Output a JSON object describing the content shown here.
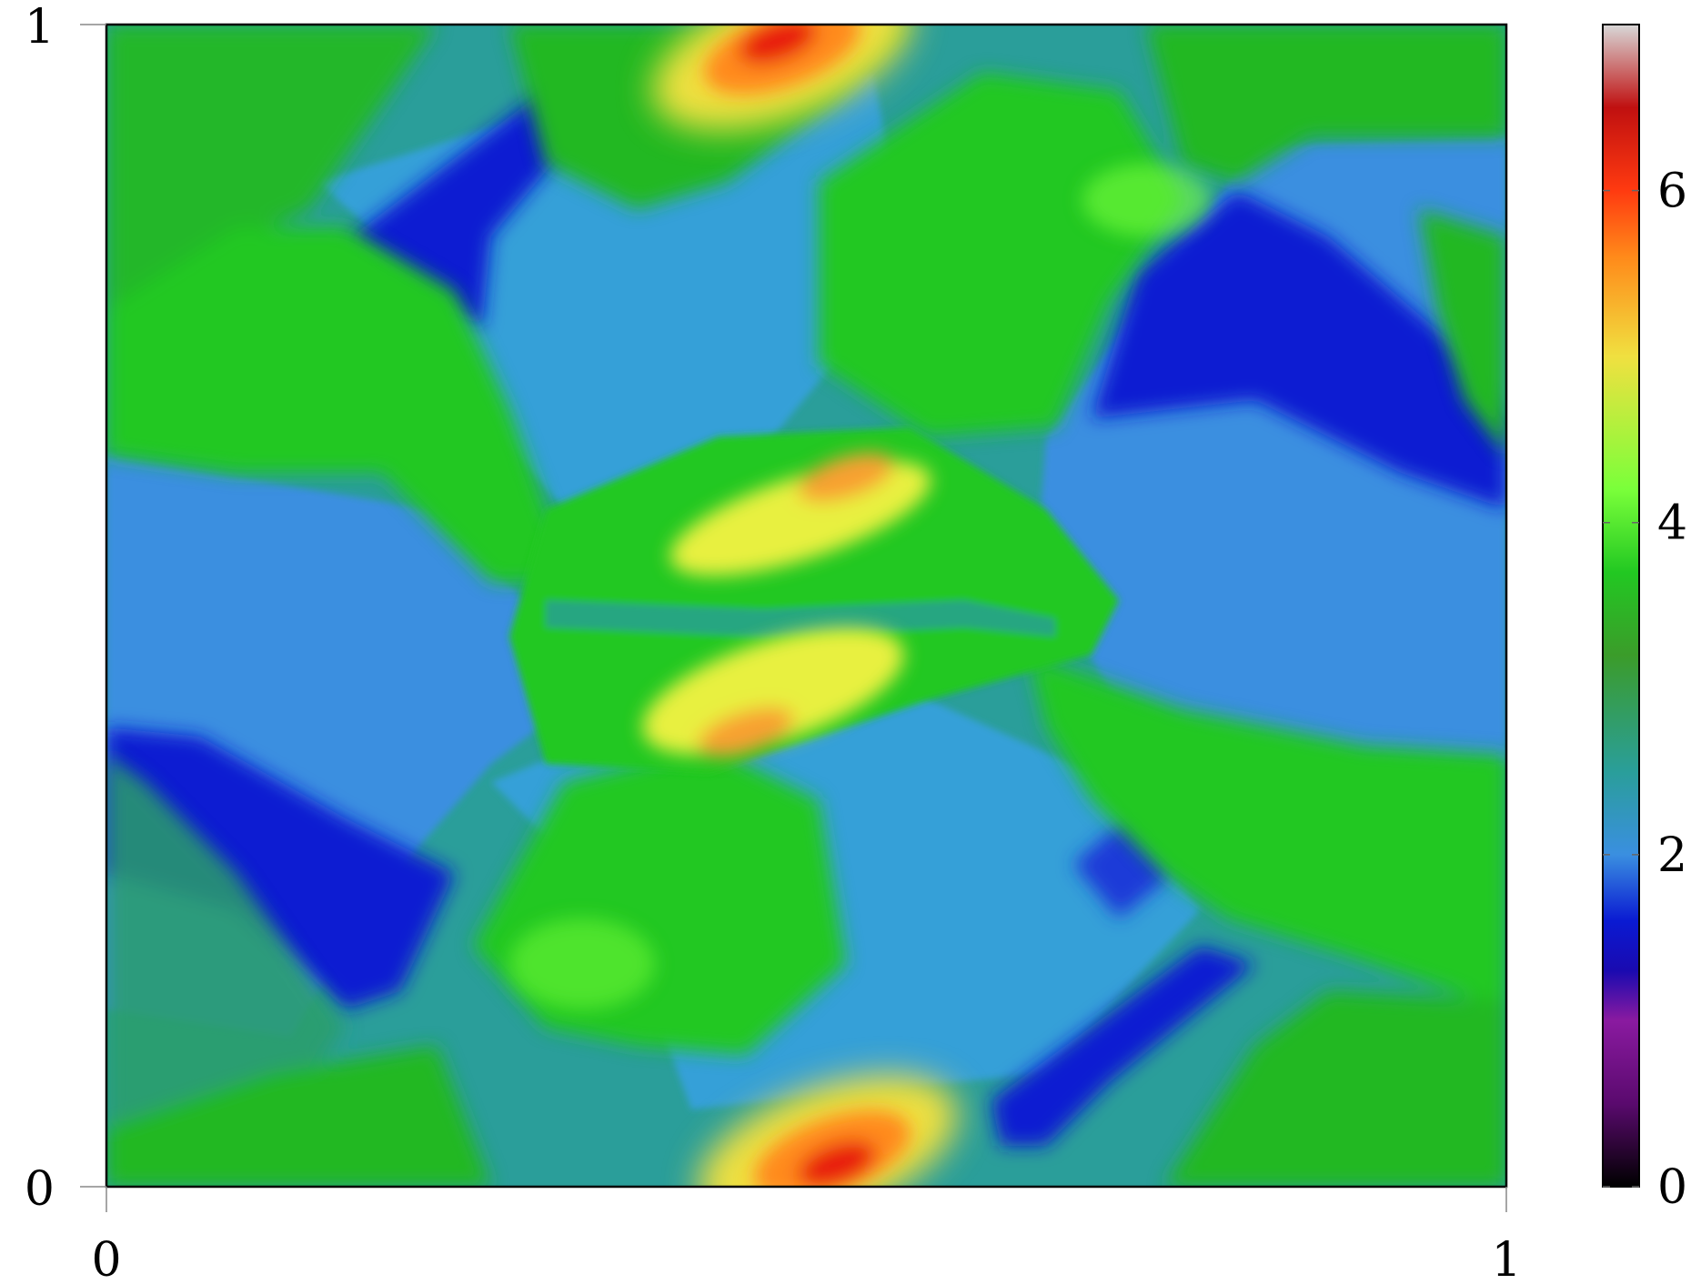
{
  "chart_data": {
    "type": "heatmap",
    "title": "",
    "xlabel": "",
    "ylabel": "",
    "xlim": [
      0,
      1
    ],
    "ylim": [
      0,
      1
    ],
    "x_ticks": [
      {
        "value": 0,
        "label": "0"
      },
      {
        "value": 1,
        "label": "1"
      }
    ],
    "y_ticks": [
      {
        "value": 0,
        "label": "0"
      },
      {
        "value": 1,
        "label": "1"
      }
    ],
    "colorbar": {
      "range": [
        0,
        7
      ],
      "ticks": [
        {
          "value": 0,
          "label": "0"
        },
        {
          "value": 2,
          "label": "2"
        },
        {
          "value": 4,
          "label": "4"
        },
        {
          "value": 6,
          "label": "6"
        }
      ],
      "colormap": [
        {
          "value": 0.0,
          "color": "#000000"
        },
        {
          "value": 0.5,
          "color": "#5a0a6e"
        },
        {
          "value": 1.0,
          "color": "#8a1aa0"
        },
        {
          "value": 1.3,
          "color": "#1a0ab0"
        },
        {
          "value": 1.6,
          "color": "#0a1ad2"
        },
        {
          "value": 2.0,
          "color": "#3a8fe0"
        },
        {
          "value": 2.5,
          "color": "#2a9e9a"
        },
        {
          "value": 3.2,
          "color": "#3b9c2a"
        },
        {
          "value": 3.7,
          "color": "#22c822"
        },
        {
          "value": 4.2,
          "color": "#7aff3a"
        },
        {
          "value": 5.0,
          "color": "#f0e040"
        },
        {
          "value": 5.6,
          "color": "#ff8a1a"
        },
        {
          "value": 6.0,
          "color": "#ff3a10"
        },
        {
          "value": 6.5,
          "color": "#c01010"
        },
        {
          "value": 7.0,
          "color": "#d8d8d8"
        }
      ]
    },
    "field_regions": [
      {
        "name": "background",
        "level": 2.6
      },
      {
        "name": "upper-left-blue-band",
        "level": 1.5
      },
      {
        "name": "upper-middle-dark-stripe",
        "level": 1.1
      },
      {
        "name": "upper-right-blue-region",
        "level": 1.8
      },
      {
        "name": "upper-right-dark-band",
        "level": 1.1
      },
      {
        "name": "left-blue-region",
        "level": 1.8
      },
      {
        "name": "lower-left-dark-band",
        "level": 1.1
      },
      {
        "name": "lower-right-dark-stripe",
        "level": 1.1
      },
      {
        "name": "central-shear-layer",
        "level": 3.6
      },
      {
        "name": "central-yellow-patch-upper",
        "level": 5.0
      },
      {
        "name": "central-yellow-patch-lower",
        "level": 5.0
      },
      {
        "name": "top-hot-spot",
        "level": 6.3
      },
      {
        "name": "bottom-hot-spot",
        "level": 6.3
      },
      {
        "name": "upper-middle-green-lobe",
        "level": 3.8
      },
      {
        "name": "lower-middle-green-lobe",
        "level": 3.8
      },
      {
        "name": "upper-left-green-structures",
        "level": 3.6
      },
      {
        "name": "lower-right-green-structures",
        "level": 3.6
      }
    ]
  }
}
